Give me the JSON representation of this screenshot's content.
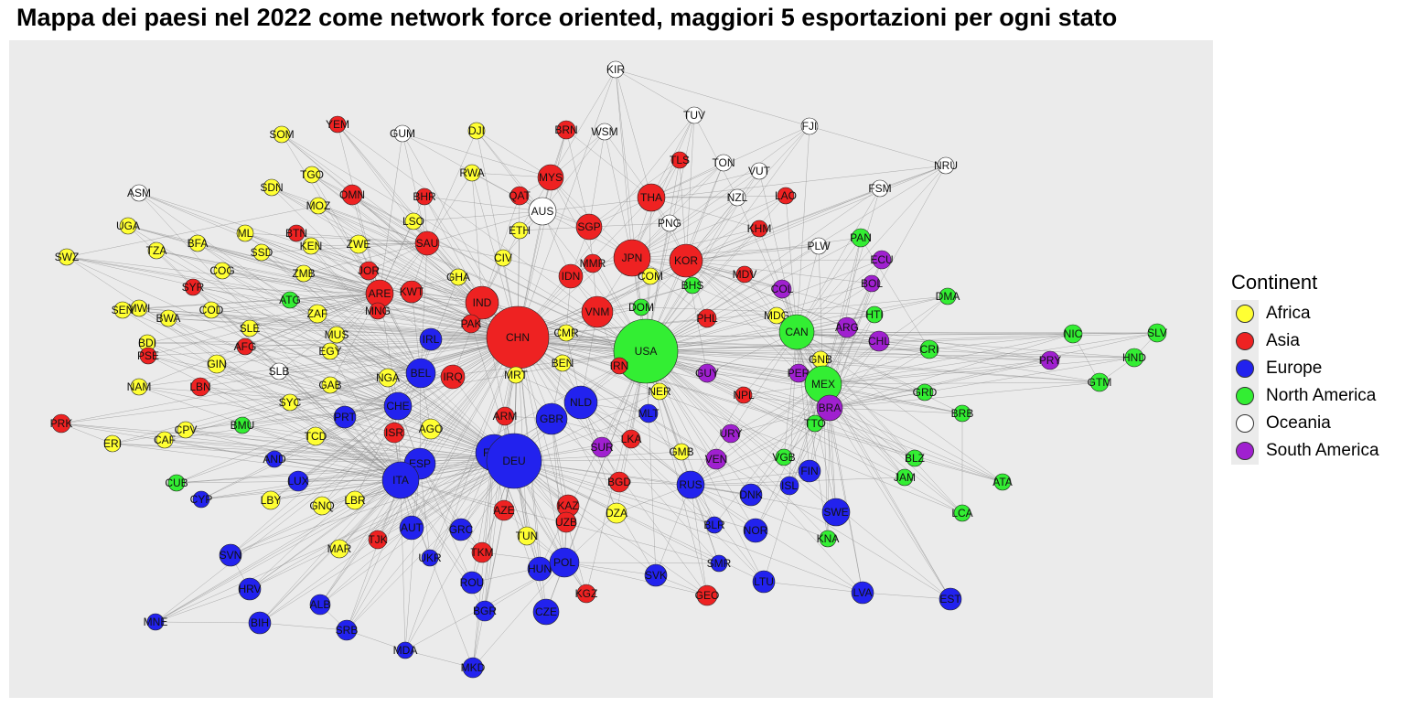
{
  "title": "Mappa dei paesi nel 2022 come network force oriented, maggiori 5 esportazioni per ogni stato",
  "legend": {
    "title": "Continent",
    "items": [
      {
        "label": "Africa",
        "color": "#ffff33"
      },
      {
        "label": "Asia",
        "color": "#ee2222"
      },
      {
        "label": "Europe",
        "color": "#2222ee"
      },
      {
        "label": "North America",
        "color": "#33ee33"
      },
      {
        "label": "Oceania",
        "color": "#ffffff"
      },
      {
        "label": "South America",
        "color": "#a020d0"
      }
    ]
  },
  "colors": {
    "panel_bg": "#ebebeb",
    "edge": "#888888",
    "node_border": "#222222"
  },
  "nodes": [
    {
      "id": "KIR",
      "c": "Oceania"
    },
    {
      "id": "TUV",
      "c": "Oceania"
    },
    {
      "id": "FJI",
      "c": "Oceania"
    },
    {
      "id": "YEM",
      "c": "Asia"
    },
    {
      "id": "BRN",
      "c": "Asia"
    },
    {
      "id": "WSM",
      "c": "Oceania"
    },
    {
      "id": "SOM",
      "c": "Africa"
    },
    {
      "id": "GUM",
      "c": "Oceania"
    },
    {
      "id": "DJI",
      "c": "Africa"
    },
    {
      "id": "TLS",
      "c": "Asia"
    },
    {
      "id": "TON",
      "c": "Oceania"
    },
    {
      "id": "NRU",
      "c": "Oceania"
    },
    {
      "id": "TGO",
      "c": "Africa"
    },
    {
      "id": "RWA",
      "c": "Africa"
    },
    {
      "id": "MYS",
      "c": "Asia"
    },
    {
      "id": "VUT",
      "c": "Oceania"
    },
    {
      "id": "SDN",
      "c": "Africa"
    },
    {
      "id": "OMN",
      "c": "Asia"
    },
    {
      "id": "BHR",
      "c": "Asia"
    },
    {
      "id": "QAT",
      "c": "Asia"
    },
    {
      "id": "THA",
      "c": "Asia"
    },
    {
      "id": "NZL",
      "c": "Oceania"
    },
    {
      "id": "LAO",
      "c": "Asia"
    },
    {
      "id": "FSM",
      "c": "Oceania"
    },
    {
      "id": "ASM",
      "c": "Oceania"
    },
    {
      "id": "MOZ",
      "c": "Africa"
    },
    {
      "id": "AUS",
      "c": "Oceania"
    },
    {
      "id": "LSO",
      "c": "Africa"
    },
    {
      "id": "PNG",
      "c": "Oceania"
    },
    {
      "id": "KHM",
      "c": "Asia"
    },
    {
      "id": "UGA",
      "c": "Africa"
    },
    {
      "id": "ML",
      "c": "Africa"
    },
    {
      "id": "BTN",
      "c": "Asia"
    },
    {
      "id": "ZWE",
      "c": "Africa"
    },
    {
      "id": "SAU",
      "c": "Asia"
    },
    {
      "id": "SGP",
      "c": "Asia"
    },
    {
      "id": "ETH",
      "c": "Africa"
    },
    {
      "id": "PAN",
      "c": "North America"
    },
    {
      "id": "TZA",
      "c": "Africa"
    },
    {
      "id": "BFA",
      "c": "Africa"
    },
    {
      "id": "SSD",
      "c": "Africa"
    },
    {
      "id": "KEN",
      "c": "Africa"
    },
    {
      "id": "PLW",
      "c": "Oceania"
    },
    {
      "id": "SWZ",
      "c": "Africa"
    },
    {
      "id": "CIV",
      "c": "Africa"
    },
    {
      "id": "JPN",
      "c": "Asia"
    },
    {
      "id": "KOR",
      "c": "Asia"
    },
    {
      "id": "ECU",
      "c": "South America"
    },
    {
      "id": "COG",
      "c": "Africa"
    },
    {
      "id": "ZMB",
      "c": "Africa"
    },
    {
      "id": "JOR",
      "c": "Asia"
    },
    {
      "id": "MMR",
      "c": "Asia"
    },
    {
      "id": "IDN",
      "c": "Asia"
    },
    {
      "id": "GHA",
      "c": "Africa"
    },
    {
      "id": "COM",
      "c": "Africa"
    },
    {
      "id": "MDV",
      "c": "Asia"
    },
    {
      "id": "SYR",
      "c": "Asia"
    },
    {
      "id": "BHS",
      "c": "North America"
    },
    {
      "id": "BOL",
      "c": "South America"
    },
    {
      "id": "ATG",
      "c": "North America"
    },
    {
      "id": "ARE",
      "c": "Asia"
    },
    {
      "id": "KWT",
      "c": "Asia"
    },
    {
      "id": "COL",
      "c": "South America"
    },
    {
      "id": "DMA",
      "c": "North America"
    },
    {
      "id": "MWI",
      "c": "Africa"
    },
    {
      "id": "SEN",
      "c": "Africa"
    },
    {
      "id": "IND",
      "c": "Asia"
    },
    {
      "id": "DOM",
      "c": "North America"
    },
    {
      "id": "COD",
      "c": "Africa"
    },
    {
      "id": "ZAF",
      "c": "Africa"
    },
    {
      "id": "MNG",
      "c": "Asia"
    },
    {
      "id": "VNM",
      "c": "Asia"
    },
    {
      "id": "HTI",
      "c": "North America"
    },
    {
      "id": "BWA",
      "c": "Africa"
    },
    {
      "id": "PAK",
      "c": "Asia"
    },
    {
      "id": "MDG",
      "c": "Africa"
    },
    {
      "id": "PHL",
      "c": "Asia"
    },
    {
      "id": "SLE",
      "c": "Africa"
    },
    {
      "id": "MUS",
      "c": "Africa"
    },
    {
      "id": "CMR",
      "c": "Africa"
    },
    {
      "id": "ARG",
      "c": "South America"
    },
    {
      "id": "CAN",
      "c": "North America"
    },
    {
      "id": "NIC",
      "c": "North America"
    },
    {
      "id": "SLV",
      "c": "North America"
    },
    {
      "id": "CHN",
      "c": "Asia"
    },
    {
      "id": "IRL",
      "c": "Europe"
    },
    {
      "id": "CHL",
      "c": "South America"
    },
    {
      "id": "USA",
      "c": "North America"
    },
    {
      "id": "BDI",
      "c": "Africa"
    },
    {
      "id": "PSE",
      "c": "Asia"
    },
    {
      "id": "AFG",
      "c": "Asia"
    },
    {
      "id": "EGY",
      "c": "Africa"
    },
    {
      "id": "CRI",
      "c": "North America"
    },
    {
      "id": "PRY",
      "c": "South America"
    },
    {
      "id": "HND",
      "c": "North America"
    },
    {
      "id": "GIN",
      "c": "Africa"
    },
    {
      "id": "GNB",
      "c": "Africa"
    },
    {
      "id": "BEN",
      "c": "Africa"
    },
    {
      "id": "SLB",
      "c": "Oceania"
    },
    {
      "id": "BEL",
      "c": "Europe"
    },
    {
      "id": "MRT",
      "c": "Africa"
    },
    {
      "id": "IRN",
      "c": "Asia"
    },
    {
      "id": "GUY",
      "c": "South America"
    },
    {
      "id": "PER",
      "c": "South America"
    },
    {
      "id": "NGA",
      "c": "Africa"
    },
    {
      "id": "IRQ",
      "c": "Asia"
    },
    {
      "id": "NAM",
      "c": "Africa"
    },
    {
      "id": "LBN",
      "c": "Asia"
    },
    {
      "id": "GAB",
      "c": "Africa"
    },
    {
      "id": "MEX",
      "c": "North America"
    },
    {
      "id": "GTM",
      "c": "North America"
    },
    {
      "id": "NER",
      "c": "Africa"
    },
    {
      "id": "CHE",
      "c": "Europe"
    },
    {
      "id": "NLD",
      "c": "Europe"
    },
    {
      "id": "NPL",
      "c": "Asia"
    },
    {
      "id": "SYC",
      "c": "Africa"
    },
    {
      "id": "GRD",
      "c": "North America"
    },
    {
      "id": "BRA",
      "c": "South America"
    },
    {
      "id": "PRK",
      "c": "Asia"
    },
    {
      "id": "ARM",
      "c": "Asia"
    },
    {
      "id": "MLT",
      "c": "Europe"
    },
    {
      "id": "PRT",
      "c": "Europe"
    },
    {
      "id": "GBR",
      "c": "Europe"
    },
    {
      "id": "BRB",
      "c": "North America"
    },
    {
      "id": "TTO",
      "c": "North America"
    },
    {
      "id": "BMU",
      "c": "North America"
    },
    {
      "id": "CPV",
      "c": "Africa"
    },
    {
      "id": "ISR",
      "c": "Asia"
    },
    {
      "id": "AGO",
      "c": "Africa"
    },
    {
      "id": "TCD",
      "c": "Africa"
    },
    {
      "id": "URY",
      "c": "South America"
    },
    {
      "id": "ERI",
      "c": "Africa"
    },
    {
      "id": "CAF",
      "c": "Africa"
    },
    {
      "id": "FRA",
      "c": "Europe"
    },
    {
      "id": "TUR",
      "c": "Asia"
    },
    {
      "id": "DEU",
      "c": "Europe"
    },
    {
      "id": "LKA",
      "c": "Asia"
    },
    {
      "id": "SUR",
      "c": "South America"
    },
    {
      "id": "AND",
      "c": "Europe"
    },
    {
      "id": "GMB",
      "c": "Africa"
    },
    {
      "id": "VEN",
      "c": "South America"
    },
    {
      "id": "VGB",
      "c": "North America"
    },
    {
      "id": "BLZ",
      "c": "North America"
    },
    {
      "id": "ESP",
      "c": "Europe"
    },
    {
      "id": "FIN",
      "c": "Europe"
    },
    {
      "id": "JAM",
      "c": "North America"
    },
    {
      "id": "ATA",
      "c": "North America"
    },
    {
      "id": "CUB",
      "c": "North America"
    },
    {
      "id": "LUX",
      "c": "Europe"
    },
    {
      "id": "ITA",
      "c": "Europe"
    },
    {
      "id": "BGD",
      "c": "Asia"
    },
    {
      "id": "RUS",
      "c": "Europe"
    },
    {
      "id": "ISL",
      "c": "Europe"
    },
    {
      "id": "DNK",
      "c": "Europe"
    },
    {
      "id": "CYP",
      "c": "Europe"
    },
    {
      "id": "LBY",
      "c": "Africa"
    },
    {
      "id": "GNQ",
      "c": "Africa"
    },
    {
      "id": "LBR",
      "c": "Africa"
    },
    {
      "id": "AZE",
      "c": "Asia"
    },
    {
      "id": "KAZ",
      "c": "Asia"
    },
    {
      "id": "DZA",
      "c": "Africa"
    },
    {
      "id": "SWE",
      "c": "Europe"
    },
    {
      "id": "LCA",
      "c": "North America"
    },
    {
      "id": "AUT",
      "c": "Europe"
    },
    {
      "id": "GRC",
      "c": "Europe"
    },
    {
      "id": "UZB",
      "c": "Asia"
    },
    {
      "id": "TUN",
      "c": "Africa"
    },
    {
      "id": "BLR",
      "c": "Europe"
    },
    {
      "id": "NOR",
      "c": "Europe"
    },
    {
      "id": "KNA",
      "c": "North America"
    },
    {
      "id": "MAR",
      "c": "Africa"
    },
    {
      "id": "TJK",
      "c": "Asia"
    },
    {
      "id": "SVN",
      "c": "Europe"
    },
    {
      "id": "UKR",
      "c": "Europe"
    },
    {
      "id": "TKM",
      "c": "Asia"
    },
    {
      "id": "SMR",
      "c": "Europe"
    },
    {
      "id": "HUN",
      "c": "Europe"
    },
    {
      "id": "POL",
      "c": "Europe"
    },
    {
      "id": "HRV",
      "c": "Europe"
    },
    {
      "id": "SVK",
      "c": "Europe"
    },
    {
      "id": "ROU",
      "c": "Europe"
    },
    {
      "id": "LTU",
      "c": "Europe"
    },
    {
      "id": "KGZ",
      "c": "Asia"
    },
    {
      "id": "GEO",
      "c": "Asia"
    },
    {
      "id": "LVA",
      "c": "Europe"
    },
    {
      "id": "EST",
      "c": "Europe"
    },
    {
      "id": "ALB",
      "c": "Europe"
    },
    {
      "id": "BGR",
      "c": "Europe"
    },
    {
      "id": "CZE",
      "c": "Europe"
    },
    {
      "id": "MNE",
      "c": "Europe"
    },
    {
      "id": "BIH",
      "c": "Europe"
    },
    {
      "id": "SRB",
      "c": "Europe"
    },
    {
      "id": "MDA",
      "c": "Europe"
    },
    {
      "id": "MKD",
      "c": "Europe"
    }
  ]
}
